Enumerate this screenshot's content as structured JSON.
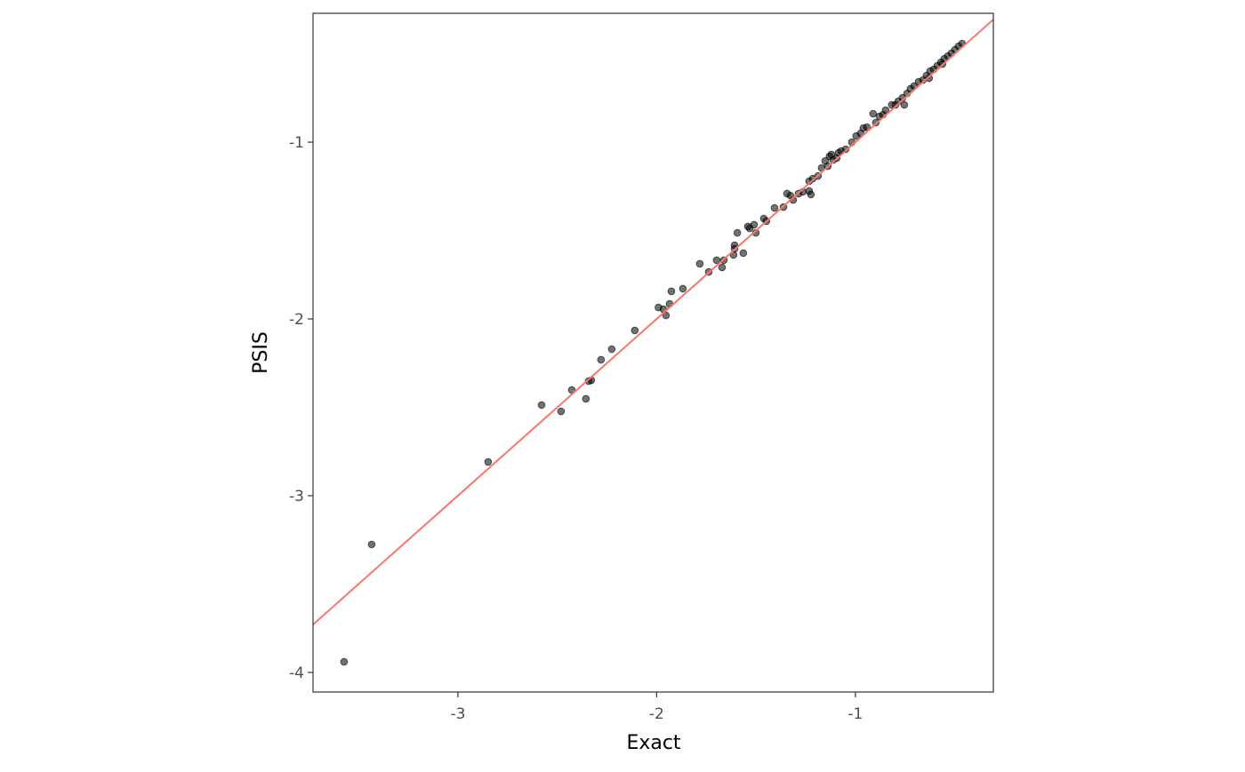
{
  "chart_data": {
    "type": "scatter",
    "x_label": "Exact",
    "y_label": "PSIS",
    "xlim": [
      -3.729,
      -0.306
    ],
    "ylim": [
      -4.111,
      -0.271
    ],
    "xticks": [
      -3,
      -2,
      -1
    ],
    "yticks": [
      -4,
      -3,
      -2,
      -1
    ],
    "reference_line": {
      "slope": 1,
      "intercept": 0,
      "color": "#f8766d"
    },
    "series": [
      {
        "color": "#000000",
        "x": [
          -3.573,
          -3.434,
          -2.848,
          -2.579,
          -2.481,
          -2.427,
          -2.356,
          -2.342,
          -2.329,
          -2.28,
          -2.226,
          -2.11,
          -1.991,
          -1.966,
          -1.953,
          -1.935,
          -1.926,
          -1.868,
          -1.783,
          -1.738,
          -1.698,
          -1.671,
          -1.662,
          -1.613,
          -1.608,
          -1.608,
          -1.594,
          -1.564,
          -1.541,
          -1.532,
          -1.51,
          -1.501,
          -1.461,
          -1.448,
          -1.407,
          -1.362,
          -1.344,
          -1.327,
          -1.313,
          -1.286,
          -1.264,
          -1.233,
          -1.224,
          -1.233,
          -1.215,
          -1.188,
          -1.17,
          -1.152,
          -1.139,
          -1.13,
          -1.121,
          -1.112,
          -1.094,
          -1.085,
          -1.072,
          -1.049,
          -1.018,
          -0.996,
          -0.973,
          -0.96,
          -0.942,
          -0.911,
          -0.897,
          -0.879,
          -0.861,
          -0.848,
          -0.817,
          -0.799,
          -0.785,
          -0.763,
          -0.74,
          -0.723,
          -0.705,
          -0.682,
          -0.66,
          -0.642,
          -0.624,
          -0.606,
          -0.588,
          -0.57,
          -0.553,
          -0.535,
          -0.517,
          -0.499,
          -0.481,
          -0.463,
          -0.754,
          -0.629,
          -0.562
        ],
        "values": [
          -3.94,
          -3.276,
          -2.809,
          -2.487,
          -2.523,
          -2.402,
          -2.452,
          -2.352,
          -2.347,
          -2.231,
          -2.171,
          -2.065,
          -1.935,
          -1.945,
          -1.98,
          -1.915,
          -1.844,
          -1.829,
          -1.688,
          -1.734,
          -1.668,
          -1.709,
          -1.668,
          -1.638,
          -1.603,
          -1.583,
          -1.513,
          -1.628,
          -1.477,
          -1.487,
          -1.467,
          -1.513,
          -1.432,
          -1.447,
          -1.372,
          -1.367,
          -1.291,
          -1.302,
          -1.327,
          -1.291,
          -1.281,
          -1.276,
          -1.296,
          -1.221,
          -1.206,
          -1.191,
          -1.146,
          -1.106,
          -1.136,
          -1.08,
          -1.07,
          -1.101,
          -1.09,
          -1.06,
          -1.05,
          -1.04,
          -1.0,
          -0.965,
          -0.95,
          -0.92,
          -0.915,
          -0.839,
          -0.889,
          -0.854,
          -0.844,
          -0.819,
          -0.789,
          -0.789,
          -0.769,
          -0.749,
          -0.724,
          -0.698,
          -0.683,
          -0.658,
          -0.648,
          -0.623,
          -0.598,
          -0.588,
          -0.568,
          -0.548,
          -0.528,
          -0.513,
          -0.497,
          -0.477,
          -0.457,
          -0.442,
          -0.789,
          -0.638,
          -0.558
        ]
      }
    ]
  }
}
